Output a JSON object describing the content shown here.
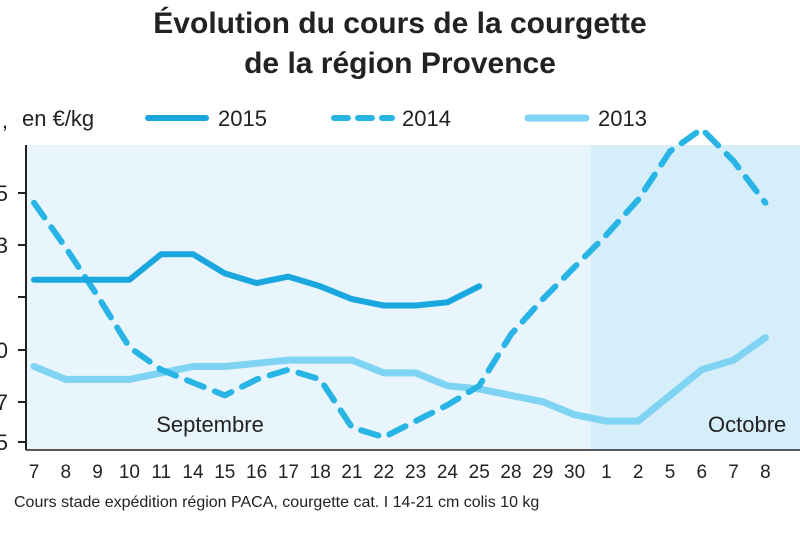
{
  "chart_data": {
    "type": "line",
    "title": "Évolution du cours de la courgette",
    "subtitle": "de la région Provence",
    "ylabel": "en €/kg",
    "caption": "Cours stade expédition région PACA, courgette cat. I 14-21 cm colis 10 kg",
    "ylim": [
      0.55,
      1.5
    ],
    "ytick_labels": [
      ",",
      "5",
      "3",
      "",
      "0",
      "7",
      "5"
    ],
    "month_labels": [
      "Septembre",
      "Octobre"
    ],
    "categories": [
      "7",
      "8",
      "9",
      "10",
      "11",
      "14",
      "15",
      "16",
      "17",
      "18",
      "21",
      "22",
      "23",
      "24",
      "25",
      "28",
      "29",
      "30",
      "1",
      "2",
      "5",
      "6",
      "7",
      "8"
    ],
    "series": [
      {
        "name": "2015",
        "values": [
          1.08,
          1.08,
          1.08,
          1.08,
          1.16,
          1.16,
          1.1,
          1.07,
          1.09,
          1.06,
          1.02,
          1.0,
          1.0,
          1.01,
          1.06,
          null,
          null,
          null,
          null,
          null,
          null,
          null,
          null,
          null
        ]
      },
      {
        "name": "2014",
        "values": [
          1.32,
          1.18,
          1.03,
          0.87,
          0.8,
          0.76,
          0.72,
          0.77,
          0.8,
          0.77,
          0.62,
          0.59,
          0.64,
          0.69,
          0.75,
          0.91,
          1.02,
          1.12,
          1.22,
          1.33,
          1.48,
          1.55,
          1.45,
          1.32
        ]
      },
      {
        "name": "2013",
        "values": [
          0.81,
          0.77,
          0.77,
          0.77,
          0.79,
          0.81,
          0.81,
          0.82,
          0.83,
          0.83,
          0.83,
          0.79,
          0.79,
          0.75,
          0.74,
          0.72,
          0.7,
          0.66,
          0.64,
          0.64,
          0.72,
          0.8,
          0.83,
          0.9
        ]
      }
    ],
    "colors": {
      "2015": "#1aa7e0",
      "2014": "#29b4e6",
      "2013": "#7fd3f3",
      "bg_sept": "#e9f5fc",
      "bg_oct": "#d6eefa"
    }
  }
}
